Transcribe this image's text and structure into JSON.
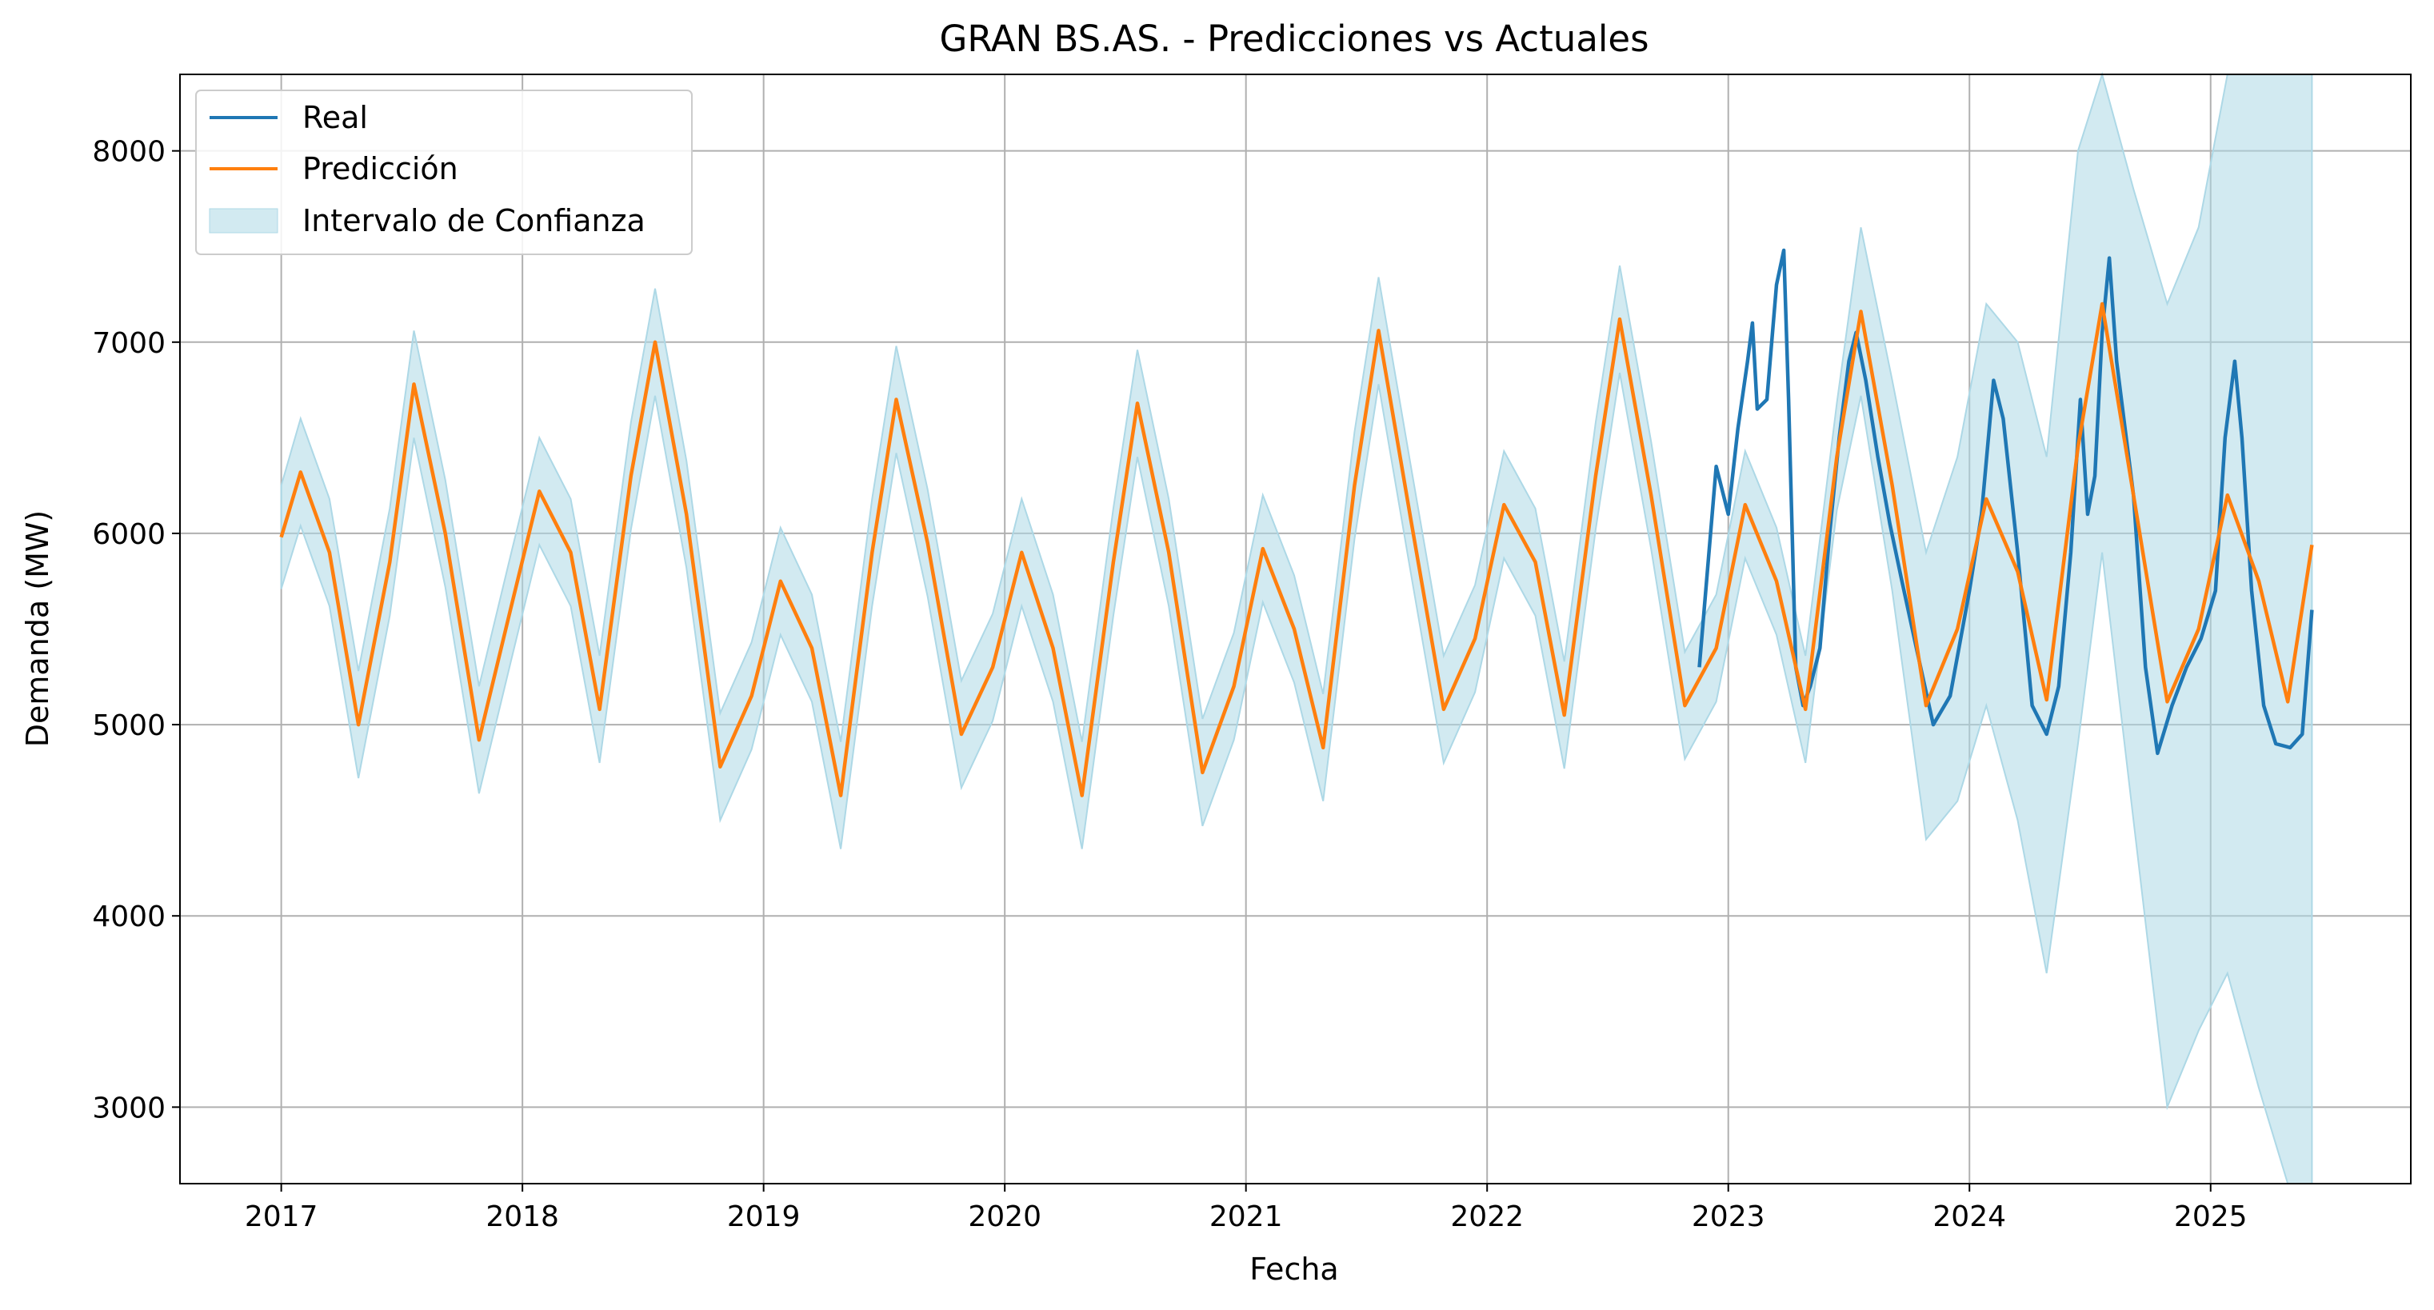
{
  "chart_data": {
    "type": "line",
    "title": "GRAN BS.AS. - Predicciones vs Actuales",
    "xlabel": "Fecha",
    "ylabel": "Demanda (MW)",
    "xlim": [
      2016.58,
      2025.83
    ],
    "ylim": [
      2600,
      8400
    ],
    "xticks": [
      "2017",
      "2018",
      "2019",
      "2020",
      "2021",
      "2022",
      "2023",
      "2024",
      "2025"
    ],
    "yticks": [
      3000,
      4000,
      5000,
      6000,
      7000,
      8000
    ],
    "grid": true,
    "legend_position": "top-left",
    "colors": {
      "real": "#1f77b4",
      "prediction": "#ff7f0e",
      "confidence": "#add8e6"
    },
    "series": [
      {
        "name": "Real",
        "x": [
          2022.88,
          2022.95,
          2023.0,
          2023.04,
          2023.08,
          2023.1,
          2023.12,
          2023.16,
          2023.2,
          2023.23,
          2023.25,
          2023.28,
          2023.31,
          2023.34,
          2023.38,
          2023.42,
          2023.46,
          2023.5,
          2023.53,
          2023.57,
          2023.62,
          2023.67,
          2023.72,
          2023.78,
          2023.85,
          2023.92,
          2024.0,
          2024.05,
          2024.1,
          2024.14,
          2024.2,
          2024.26,
          2024.32,
          2024.37,
          2024.42,
          2024.46,
          2024.49,
          2024.52,
          2024.55,
          2024.58,
          2024.61,
          2024.64,
          2024.68,
          2024.73,
          2024.78,
          2024.84,
          2024.9,
          2024.96,
          2025.02,
          2025.06,
          2025.1,
          2025.13,
          2025.17,
          2025.22,
          2025.27,
          2025.33,
          2025.38,
          2025.42
        ],
        "values": [
          5300,
          6350,
          6100,
          6550,
          6900,
          7100,
          6650,
          6700,
          7300,
          7480,
          6700,
          5300,
          5100,
          5200,
          5400,
          6000,
          6500,
          6900,
          7050,
          6800,
          6400,
          6050,
          5750,
          5400,
          5000,
          5150,
          5700,
          6100,
          6800,
          6600,
          5900,
          5100,
          4950,
          5200,
          5900,
          6700,
          6100,
          6300,
          7050,
          7440,
          6900,
          6600,
          6200,
          5300,
          4850,
          5100,
          5300,
          5450,
          5700,
          6500,
          6900,
          6500,
          5700,
          5100,
          4900,
          4880,
          4950,
          5600
        ]
      },
      {
        "name": "Predicción",
        "x": [
          2017.0,
          2017.08,
          2017.2,
          2017.32,
          2017.45,
          2017.55,
          2017.68,
          2017.82,
          2017.95,
          2018.07,
          2018.2,
          2018.32,
          2018.45,
          2018.55,
          2018.68,
          2018.82,
          2018.95,
          2019.07,
          2019.2,
          2019.32,
          2019.45,
          2019.55,
          2019.68,
          2019.82,
          2019.95,
          2020.07,
          2020.2,
          2020.32,
          2020.45,
          2020.55,
          2020.68,
          2020.82,
          2020.95,
          2021.07,
          2021.2,
          2021.32,
          2021.45,
          2021.55,
          2021.68,
          2021.82,
          2021.95,
          2022.07,
          2022.2,
          2022.32,
          2022.45,
          2022.55,
          2022.68,
          2022.82,
          2022.95,
          2023.07,
          2023.2,
          2023.32,
          2023.45,
          2023.55,
          2023.68,
          2023.82,
          2023.95,
          2024.07,
          2024.2,
          2024.32,
          2024.45,
          2024.55,
          2024.68,
          2024.82,
          2024.95,
          2025.07,
          2025.2,
          2025.32,
          2025.42
        ],
        "values": [
          5980,
          6320,
          5900,
          5000,
          5850,
          6780,
          6000,
          4920,
          5600,
          6220,
          5900,
          5080,
          6300,
          7000,
          6100,
          4780,
          5150,
          5750,
          5400,
          4630,
          5900,
          6700,
          5950,
          4950,
          5300,
          5900,
          5400,
          4630,
          5850,
          6680,
          5900,
          4750,
          5200,
          5920,
          5500,
          4880,
          6250,
          7060,
          6100,
          5080,
          5450,
          6150,
          5850,
          5050,
          6300,
          7120,
          6200,
          5100,
          5400,
          6150,
          5750,
          5080,
          6400,
          7160,
          6250,
          5100,
          5500,
          6180,
          5800,
          5130,
          6450,
          7200,
          6200,
          5120,
          5500,
          6200,
          5750,
          5120,
          5940
        ]
      },
      {
        "name": "Intervalo de Confianza",
        "x": [
          2017.0,
          2017.08,
          2017.2,
          2017.32,
          2017.45,
          2017.55,
          2017.68,
          2017.82,
          2017.95,
          2018.07,
          2018.2,
          2018.32,
          2018.45,
          2018.55,
          2018.68,
          2018.82,
          2018.95,
          2019.07,
          2019.2,
          2019.32,
          2019.45,
          2019.55,
          2019.68,
          2019.82,
          2019.95,
          2020.07,
          2020.2,
          2020.32,
          2020.45,
          2020.55,
          2020.68,
          2020.82,
          2020.95,
          2021.07,
          2021.2,
          2021.32,
          2021.45,
          2021.55,
          2021.68,
          2021.82,
          2021.95,
          2022.07,
          2022.2,
          2022.32,
          2022.45,
          2022.55,
          2022.68,
          2022.82,
          2022.95,
          2023.07,
          2023.2,
          2023.32,
          2023.45,
          2023.55,
          2023.68,
          2023.82,
          2023.95,
          2024.07,
          2024.2,
          2024.32,
          2024.45,
          2024.55,
          2024.68,
          2024.82,
          2024.95,
          2025.07,
          2025.2,
          2025.32,
          2025.42
        ],
        "upper": [
          6250,
          6600,
          6180,
          5280,
          6130,
          7060,
          6280,
          5200,
          5880,
          6500,
          6180,
          5360,
          6580,
          7280,
          6380,
          5060,
          5430,
          6030,
          5680,
          4910,
          6180,
          6980,
          6230,
          5230,
          5580,
          6180,
          5680,
          4910,
          6130,
          6960,
          6180,
          5030,
          5480,
          6200,
          5780,
          5160,
          6530,
          7340,
          6380,
          5360,
          5730,
          6430,
          6130,
          5330,
          6580,
          7400,
          6480,
          5380,
          5680,
          6430,
          6030,
          5360,
          6680,
          7600,
          6800,
          5900,
          6400,
          7200,
          7000,
          6400,
          8000,
          8400,
          7800,
          7200,
          7600,
          8400,
          8400,
          8400,
          8400
        ],
        "lower": [
          5710,
          6040,
          5620,
          4720,
          5570,
          6500,
          5720,
          4640,
          5320,
          5940,
          5620,
          4800,
          6020,
          6720,
          5820,
          4500,
          4870,
          5470,
          5120,
          4350,
          5620,
          6420,
          5670,
          4670,
          5020,
          5620,
          5120,
          4350,
          5570,
          6400,
          5620,
          4470,
          4920,
          5640,
          5220,
          4600,
          5970,
          6780,
          5820,
          4800,
          5170,
          5870,
          5570,
          4770,
          6020,
          6840,
          5920,
          4820,
          5120,
          5870,
          5470,
          4800,
          6120,
          6720,
          5700,
          4400,
          4600,
          5100,
          4500,
          3700,
          4900,
          5900,
          4500,
          3000,
          3400,
          3700,
          3100,
          2600,
          2600
        ]
      }
    ]
  }
}
